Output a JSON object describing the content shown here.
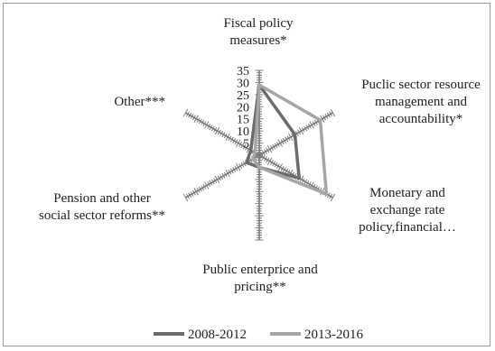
{
  "chart_data": {
    "type": "radar",
    "axes": [
      {
        "label_lines": [
          "Fiscal policy",
          "measures*"
        ]
      },
      {
        "label_lines": [
          "Puclic sector resource",
          "management and",
          "accountability*"
        ]
      },
      {
        "label_lines": [
          "Monetary and",
          "exchange rate",
          "policy,financial…"
        ]
      },
      {
        "label_lines": [
          "Public enterprice and",
          "pricing**"
        ]
      },
      {
        "label_lines": [
          "Pension and other",
          "social sector reforms**"
        ]
      },
      {
        "label_lines": [
          "Other***"
        ]
      }
    ],
    "r_ticks": [
      "0",
      "5",
      "10",
      "15",
      "20",
      "25",
      "30",
      "35"
    ],
    "rmax": 35,
    "series": [
      {
        "name": "2008-2012",
        "color": "#6b6b6b",
        "values": [
          29,
          17,
          19,
          5,
          6,
          4
        ]
      },
      {
        "name": "2013-2016",
        "color": "#a6a6a6",
        "values": [
          29,
          29,
          32,
          5,
          3,
          2
        ]
      }
    ],
    "legend_position": "bottom",
    "grid": false
  }
}
